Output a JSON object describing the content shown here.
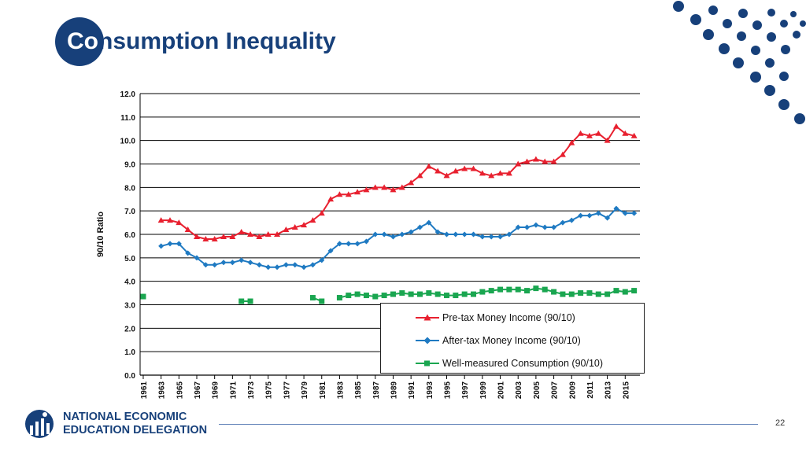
{
  "slide": {
    "title_first": "Co",
    "title_rest": "nsumption Inequality",
    "page_number": "22"
  },
  "logo": {
    "line1": "NATIONAL ECONOMIC",
    "line2": "EDUCATION DELEGATION"
  },
  "colors": {
    "brand": "#17407a",
    "pretax": "#e8202f",
    "aftertax": "#1f7ac2",
    "consumption": "#1aa650"
  },
  "legend": {
    "pretax": "Pre-tax Money Income (90/10)",
    "aftertax": "After-tax Money Income (90/10)",
    "consumption": "Well-measured Consumption (90/10)"
  },
  "chart_data": {
    "type": "line",
    "title": "",
    "xlabel": "",
    "ylabel": "90/10 Ratio",
    "ylim": [
      0,
      12
    ],
    "yticks": [
      "0.0",
      "1.0",
      "2.0",
      "3.0",
      "4.0",
      "5.0",
      "6.0",
      "7.0",
      "8.0",
      "9.0",
      "10.0",
      "11.0",
      "12.0"
    ],
    "x": [
      1961,
      1962,
      1963,
      1964,
      1965,
      1966,
      1967,
      1968,
      1969,
      1970,
      1971,
      1972,
      1973,
      1974,
      1975,
      1976,
      1977,
      1978,
      1979,
      1980,
      1981,
      1982,
      1983,
      1984,
      1985,
      1986,
      1987,
      1988,
      1989,
      1990,
      1991,
      1992,
      1993,
      1994,
      1995,
      1996,
      1997,
      1998,
      1999,
      2000,
      2001,
      2002,
      2003,
      2004,
      2005,
      2006,
      2007,
      2008,
      2009,
      2010,
      2011,
      2012,
      2013,
      2014,
      2015,
      2016
    ],
    "xtick_labels": [
      "1961",
      "1963",
      "1965",
      "1967",
      "1969",
      "1971",
      "1973",
      "1975",
      "1977",
      "1979",
      "1981",
      "1983",
      "1985",
      "1987",
      "1989",
      "1991",
      "1993",
      "1995",
      "1997",
      "1999",
      "2001",
      "2003",
      "2005",
      "2007",
      "2009",
      "2011",
      "2013",
      "2015"
    ],
    "series": [
      {
        "name": "Pre-tax Money Income (90/10)",
        "marker": "triangle",
        "values": [
          null,
          null,
          6.6,
          6.6,
          6.5,
          6.2,
          5.9,
          5.8,
          5.8,
          5.9,
          5.9,
          6.1,
          6.0,
          5.9,
          6.0,
          6.0,
          6.2,
          6.3,
          6.4,
          6.6,
          6.9,
          7.5,
          7.7,
          7.7,
          7.8,
          7.9,
          8.0,
          8.0,
          7.9,
          8.0,
          8.2,
          8.5,
          8.9,
          8.7,
          8.5,
          8.7,
          8.8,
          8.8,
          8.6,
          8.5,
          8.6,
          8.6,
          9.0,
          9.1,
          9.2,
          9.1,
          9.1,
          9.4,
          9.9,
          10.3,
          10.2,
          10.3,
          10.0,
          10.6,
          10.3,
          10.2
        ]
      },
      {
        "name": "After-tax Money Income (90/10)",
        "marker": "diamond",
        "values": [
          null,
          null,
          5.5,
          5.6,
          5.6,
          5.2,
          5.0,
          4.7,
          4.7,
          4.8,
          4.8,
          4.9,
          4.8,
          4.7,
          4.6,
          4.6,
          4.7,
          4.7,
          4.6,
          4.7,
          4.9,
          5.3,
          5.6,
          5.6,
          5.6,
          5.7,
          6.0,
          6.0,
          5.9,
          6.0,
          6.1,
          6.3,
          6.5,
          6.1,
          6.0,
          6.0,
          6.0,
          6.0,
          5.9,
          5.9,
          5.9,
          6.0,
          6.3,
          6.3,
          6.4,
          6.3,
          6.3,
          6.5,
          6.6,
          6.8,
          6.8,
          6.9,
          6.7,
          7.1,
          6.9,
          6.9
        ]
      },
      {
        "name": "Well-measured Consumption (90/10)",
        "marker": "square",
        "values": [
          3.35,
          null,
          null,
          null,
          null,
          null,
          null,
          null,
          null,
          null,
          null,
          3.15,
          3.15,
          null,
          null,
          null,
          null,
          null,
          null,
          3.3,
          3.15,
          null,
          3.3,
          3.4,
          3.45,
          3.4,
          3.35,
          3.4,
          3.45,
          3.5,
          3.45,
          3.45,
          3.5,
          3.45,
          3.4,
          3.4,
          3.45,
          3.45,
          3.55,
          3.6,
          3.65,
          3.65,
          3.65,
          3.6,
          3.7,
          3.65,
          3.55,
          3.45,
          3.45,
          3.5,
          3.5,
          3.45,
          3.45,
          3.6,
          3.55,
          3.6
        ]
      }
    ]
  }
}
